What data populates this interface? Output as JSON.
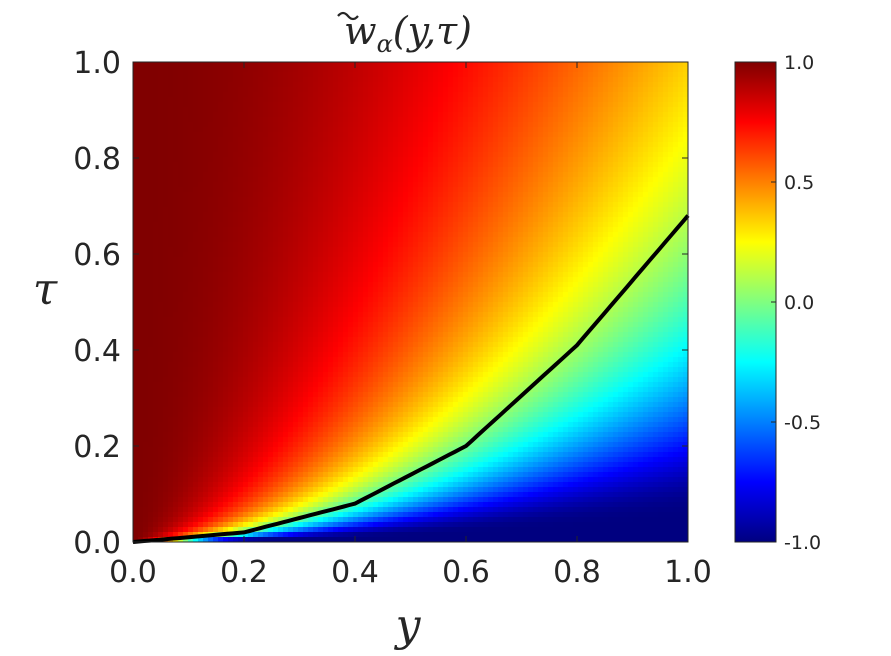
{
  "chart_data": {
    "type": "heatmap",
    "title": "w̃α(y,τ)",
    "title_parts": {
      "func": "w",
      "sub": "α",
      "args": "(y,τ)"
    },
    "xlabel": "y",
    "ylabel": "τ",
    "xlim": [
      0.0,
      1.0
    ],
    "ylim": [
      0.0,
      1.0
    ],
    "x_ticks": [
      "0.0",
      "0.2",
      "0.4",
      "0.6",
      "0.8",
      "1.0"
    ],
    "y_ticks": [
      "0.0",
      "0.2",
      "0.4",
      "0.6",
      "0.8",
      "1.0"
    ],
    "colorbar": {
      "colormap": "jet",
      "range": [
        -1.0,
        1.0
      ],
      "ticks": [
        "1.0",
        "0.5",
        "0.0",
        "-0.5",
        "-1.0"
      ],
      "tick_values": [
        1.0,
        0.5,
        0.0,
        -0.5,
        -1.0
      ]
    },
    "zero_contour": {
      "color": "#000000",
      "x": [
        0.0,
        0.2,
        0.4,
        0.6,
        0.8,
        1.0
      ],
      "y": [
        0.0,
        0.02,
        0.08,
        0.2,
        0.41,
        0.68
      ]
    },
    "grid": false
  }
}
